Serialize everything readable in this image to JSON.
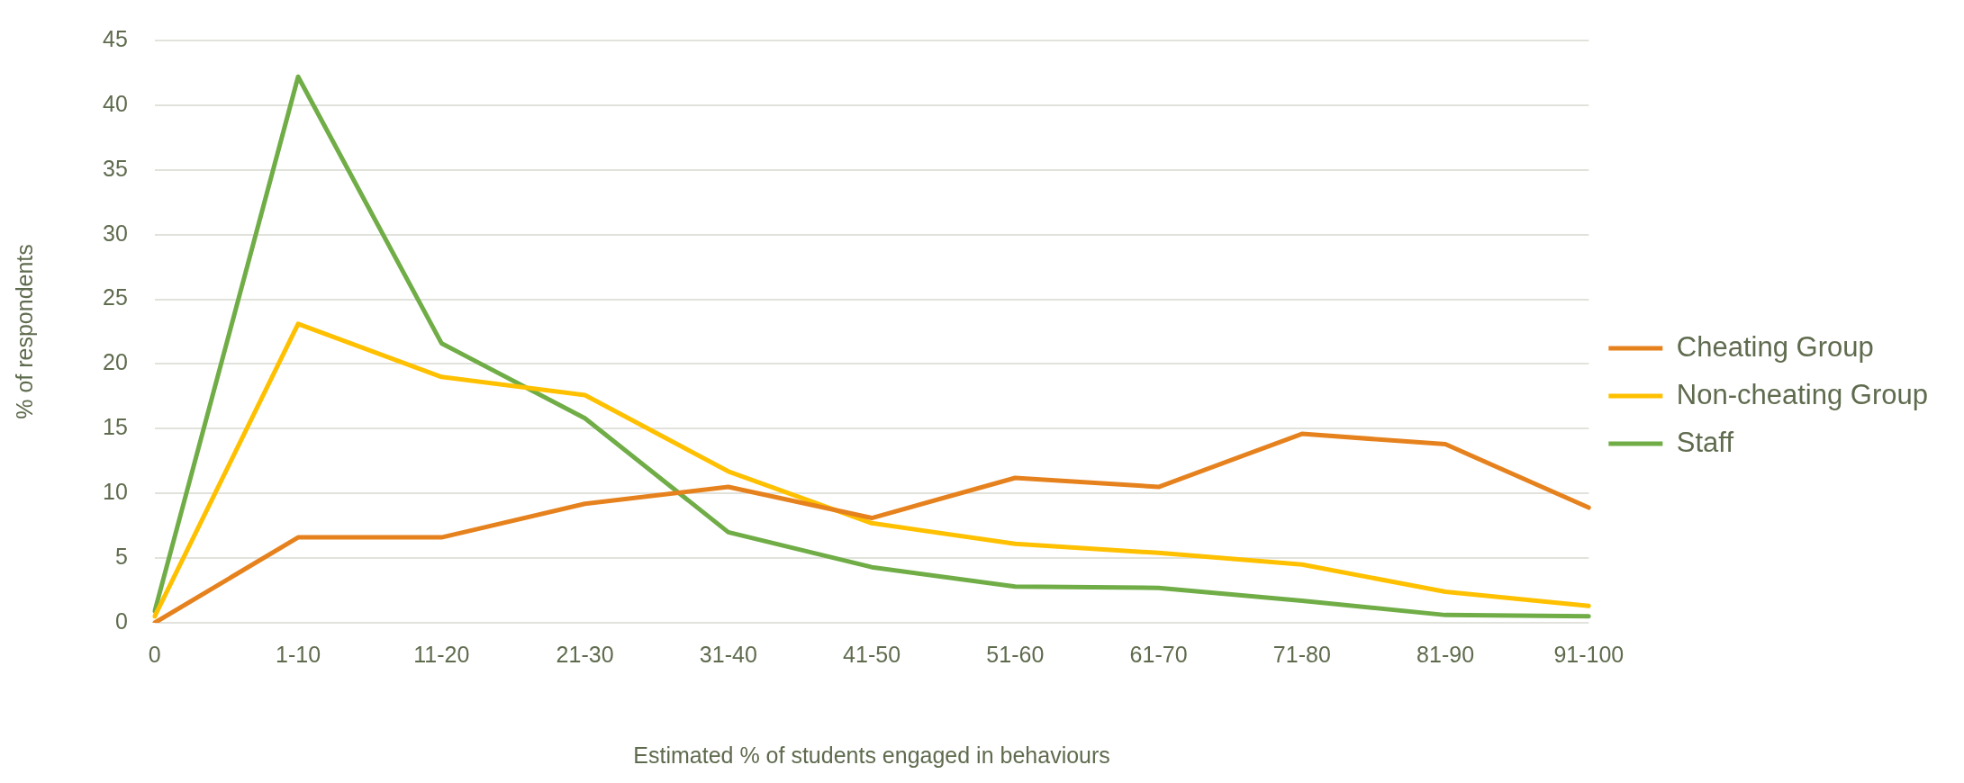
{
  "chart_data": {
    "type": "line",
    "xlabel": "Estimated % of students engaged in behaviours",
    "ylabel": "% of respondents",
    "categories": [
      "0",
      "1-10",
      "11-20",
      "21-30",
      "31-40",
      "41-50",
      "51-60",
      "61-70",
      "71-80",
      "81-90",
      "91-100"
    ],
    "series": [
      {
        "name": "Cheating Group",
        "color": "#e6821e",
        "values": [
          0,
          6.6,
          6.6,
          9.2,
          10.5,
          8.1,
          11.2,
          10.5,
          14.6,
          13.8,
          8.9
        ]
      },
      {
        "name": "Non-cheating Group",
        "color": "#ffc000",
        "values": [
          0.5,
          23.1,
          19,
          17.6,
          11.7,
          7.7,
          6.1,
          5.4,
          4.5,
          2.4,
          1.3
        ]
      },
      {
        "name": "Staff",
        "color": "#70ad47",
        "values": [
          0.9,
          42.2,
          21.6,
          15.8,
          7,
          4.3,
          2.8,
          2.7,
          1.7,
          0.6,
          0.5
        ]
      }
    ],
    "ylim": [
      0,
      45
    ],
    "yticks": [
      0,
      5,
      10,
      15,
      20,
      25,
      30,
      35,
      40,
      45
    ],
    "grid": "y",
    "legend": "right",
    "marker": "none",
    "line_style": "solid"
  }
}
